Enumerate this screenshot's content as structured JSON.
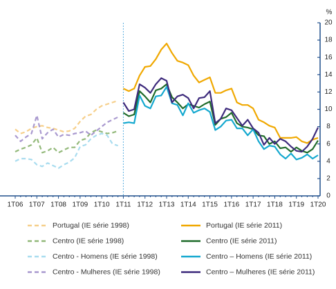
{
  "chart_data": {
    "type": "line",
    "y_label": "%",
    "categories": [
      "1T06",
      null,
      null,
      null,
      "1T07",
      null,
      null,
      null,
      "1T08",
      null,
      null,
      null,
      "1T09",
      null,
      null,
      null,
      "1T10",
      null,
      null,
      null,
      "1T11",
      null,
      null,
      null,
      "1T12",
      null,
      null,
      null,
      "1T13",
      null,
      null,
      null,
      "1T14",
      null,
      null,
      null,
      "1T15",
      null,
      null,
      null,
      "1T16",
      null,
      null,
      null,
      "1T17",
      null,
      null,
      null,
      "1T18",
      null,
      null,
      null,
      "1T19",
      null,
      null,
      null,
      "1T20"
    ],
    "ylim": [
      0,
      20
    ],
    "yticks": [
      0,
      2,
      4,
      6,
      8,
      10,
      12,
      14,
      16,
      18,
      20
    ],
    "series": [
      {
        "name": "Portugal (IE série 1998)",
        "color": "#f6cf8a",
        "dashed": true,
        "values": [
          7.7,
          7.2,
          7.4,
          7.8,
          8.0,
          8.1,
          7.9,
          7.8,
          7.6,
          7.4,
          7.5,
          7.8,
          8.6,
          9.2,
          9.4,
          10.0,
          10.4,
          10.6,
          10.8,
          11.0,
          null,
          null,
          null,
          null,
          null,
          null,
          null,
          null,
          null,
          null,
          null,
          null,
          null,
          null,
          null,
          null,
          null,
          null,
          null,
          null,
          null,
          null,
          null,
          null,
          null,
          null,
          null,
          null,
          null,
          null,
          null,
          null,
          null,
          null,
          null,
          null,
          null
        ]
      },
      {
        "name": "Centro (IE série 1998)",
        "color": "#93b97a",
        "dashed": true,
        "values": [
          5.1,
          5.4,
          5.6,
          5.9,
          6.7,
          5.0,
          5.2,
          5.6,
          5.0,
          5.3,
          5.6,
          5.6,
          6.4,
          6.6,
          7.3,
          7.6,
          7.4,
          7.2,
          7.3,
          7.5,
          null,
          null,
          null,
          null,
          null,
          null,
          null,
          null,
          null,
          null,
          null,
          null,
          null,
          null,
          null,
          null,
          null,
          null,
          null,
          null,
          null,
          null,
          null,
          null,
          null,
          null,
          null,
          null,
          null,
          null,
          null,
          null,
          null,
          null,
          null,
          null,
          null
        ]
      },
      {
        "name": "Centro - Homens (IE série 1998)",
        "color": "#a8dcef",
        "dashed": true,
        "values": [
          4.0,
          4.3,
          4.3,
          4.2,
          3.6,
          3.4,
          3.8,
          3.5,
          3.2,
          3.6,
          3.9,
          4.4,
          5.7,
          5.9,
          6.6,
          7.0,
          7.2,
          7.0,
          6.0,
          5.8,
          null,
          null,
          null,
          null,
          null,
          null,
          null,
          null,
          null,
          null,
          null,
          null,
          null,
          null,
          null,
          null,
          null,
          null,
          null,
          null,
          null,
          null,
          null,
          null,
          null,
          null,
          null,
          null,
          null,
          null,
          null,
          null,
          null,
          null,
          null,
          null,
          null
        ]
      },
      {
        "name": "Centro - Mulheres (IE série 1998)",
        "color": "#a999cf",
        "dashed": true,
        "values": [
          7.0,
          6.3,
          6.8,
          7.2,
          9.3,
          6.6,
          7.3,
          7.7,
          6.8,
          7.1,
          7.0,
          7.2,
          7.3,
          7.5,
          7.0,
          7.5,
          8.0,
          8.5,
          8.8,
          9.1,
          null,
          null,
          null,
          null,
          null,
          null,
          null,
          null,
          null,
          null,
          null,
          null,
          null,
          null,
          null,
          null,
          null,
          null,
          null,
          null,
          null,
          null,
          null,
          null,
          null,
          null,
          null,
          null,
          null,
          null,
          null,
          null,
          null,
          null,
          null,
          null,
          null
        ]
      },
      {
        "name": "Portugal (IE série 2011)",
        "color": "#f0a800",
        "dashed": false,
        "values": [
          null,
          null,
          null,
          null,
          null,
          null,
          null,
          null,
          null,
          null,
          null,
          null,
          null,
          null,
          null,
          null,
          null,
          null,
          null,
          null,
          12.4,
          12.1,
          12.4,
          13.9,
          14.9,
          15.0,
          15.8,
          16.9,
          17.6,
          16.5,
          15.6,
          15.4,
          15.1,
          13.9,
          13.1,
          13.4,
          13.7,
          11.9,
          11.9,
          12.2,
          12.4,
          10.8,
          10.5,
          10.5,
          10.1,
          8.8,
          8.5,
          8.1,
          7.9,
          6.7,
          6.7,
          6.7,
          6.8,
          6.3,
          6.1,
          6.5,
          6.7
        ]
      },
      {
        "name": "Centro (IE série 2011)",
        "color": "#1f6b2a",
        "dashed": false,
        "values": [
          null,
          null,
          null,
          null,
          null,
          null,
          null,
          null,
          null,
          null,
          null,
          null,
          null,
          null,
          null,
          null,
          null,
          null,
          null,
          null,
          9.6,
          9.2,
          9.4,
          12.1,
          11.5,
          10.8,
          12.2,
          12.4,
          12.9,
          11.4,
          10.8,
          10.1,
          10.6,
          10.4,
          10.2,
          10.6,
          10.9,
          8.2,
          8.9,
          9.1,
          9.6,
          8.4,
          8.0,
          7.9,
          7.7,
          7.0,
          6.9,
          6.0,
          6.3,
          5.5,
          5.6,
          5.1,
          5.6,
          5.2,
          5.0,
          5.4,
          6.4
        ]
      },
      {
        "name": "Centro – Homens (IE série 2011)",
        "color": "#13a8cf",
        "dashed": false,
        "values": [
          null,
          null,
          null,
          null,
          null,
          null,
          null,
          null,
          null,
          null,
          null,
          null,
          null,
          null,
          null,
          null,
          null,
          null,
          null,
          null,
          8.4,
          8.5,
          8.4,
          11.6,
          10.4,
          10.1,
          11.5,
          11.6,
          12.6,
          10.7,
          10.5,
          9.3,
          10.7,
          9.6,
          9.9,
          10.1,
          9.7,
          7.6,
          8.0,
          8.7,
          8.8,
          7.8,
          7.8,
          7.0,
          7.7,
          6.3,
          5.4,
          5.8,
          5.7,
          4.8,
          4.3,
          4.9,
          4.2,
          4.4,
          4.8,
          4.3,
          4.7
        ]
      },
      {
        "name": "Centro – Mulheres (IE série 2011)",
        "color": "#3d2a7c",
        "dashed": false,
        "values": [
          null,
          null,
          null,
          null,
          null,
          null,
          null,
          null,
          null,
          null,
          null,
          null,
          null,
          null,
          null,
          null,
          null,
          null,
          null,
          null,
          10.8,
          9.8,
          10.0,
          12.9,
          12.5,
          11.9,
          12.9,
          13.6,
          13.3,
          10.8,
          11.5,
          11.7,
          11.3,
          10.1,
          11.3,
          11.4,
          12.1,
          8.4,
          8.9,
          10.1,
          9.9,
          9.0,
          8.1,
          8.8,
          7.8,
          7.3,
          5.9,
          6.7,
          6.0,
          6.6,
          6.3,
          5.7,
          5.2,
          5.1,
          5.7,
          6.6,
          7.9
        ]
      }
    ]
  }
}
